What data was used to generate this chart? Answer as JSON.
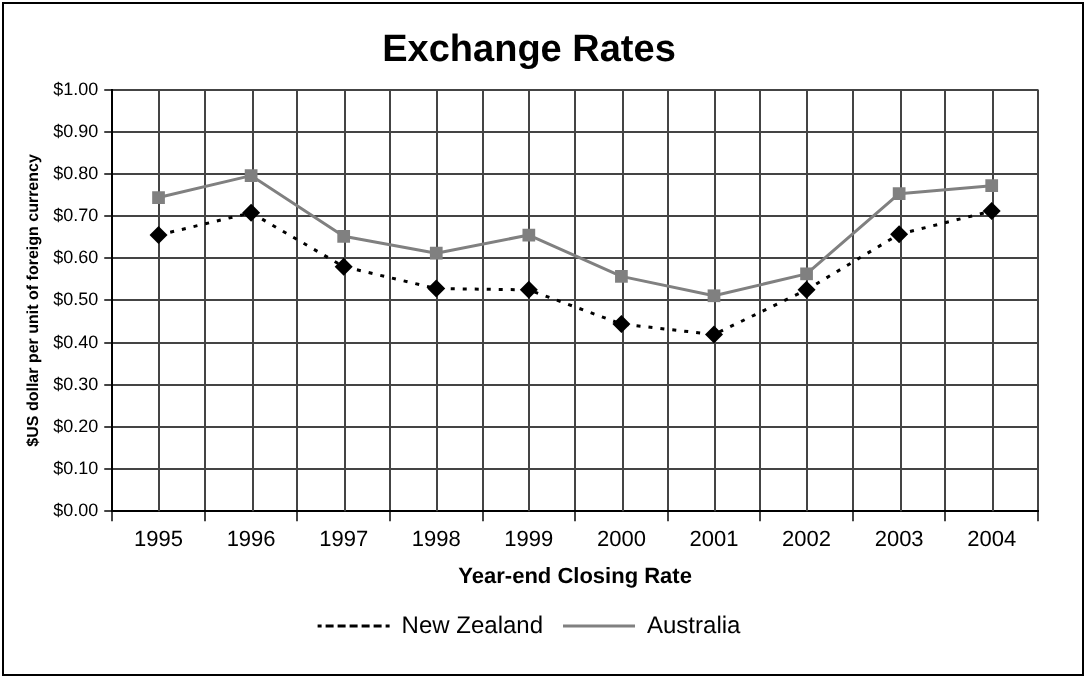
{
  "chart_data": {
    "type": "line",
    "title": "Exchange Rates",
    "xlabel": "Year-end Closing Rate",
    "ylabel": "$US dollar per unit of foreign currency",
    "categories": [
      "1995",
      "1996",
      "1997",
      "1998",
      "1999",
      "2000",
      "2001",
      "2002",
      "2003",
      "2004"
    ],
    "series": [
      {
        "name": "New Zealand",
        "color": "#000000",
        "marker": "diamond",
        "line_style": "dotted",
        "values": [
          0.655,
          0.708,
          0.58,
          0.528,
          0.525,
          0.444,
          0.419,
          0.525,
          0.657,
          0.712
        ]
      },
      {
        "name": "Australia",
        "color": "#808080",
        "marker": "square",
        "line_style": "solid",
        "values": [
          0.744,
          0.796,
          0.652,
          0.612,
          0.655,
          0.557,
          0.511,
          0.563,
          0.753,
          0.772
        ]
      }
    ],
    "ylim": [
      0,
      1
    ],
    "yticks": [
      {
        "value": 0,
        "label": "$0.00"
      },
      {
        "value": 0.1,
        "label": "$0.10"
      },
      {
        "value": 0.2,
        "label": "$0.20"
      },
      {
        "value": 0.3,
        "label": "$0.30"
      },
      {
        "value": 0.4,
        "label": "$0.40"
      },
      {
        "value": 0.5,
        "label": "$0.50"
      },
      {
        "value": 0.6,
        "label": "$0.60"
      },
      {
        "value": 0.7,
        "label": "$0.70"
      },
      {
        "value": 0.8,
        "label": "$0.80"
      },
      {
        "value": 0.9,
        "label": "$0.90"
      },
      {
        "value": 1,
        "label": "$1.00"
      }
    ],
    "grid": true,
    "legend": "bottom"
  }
}
